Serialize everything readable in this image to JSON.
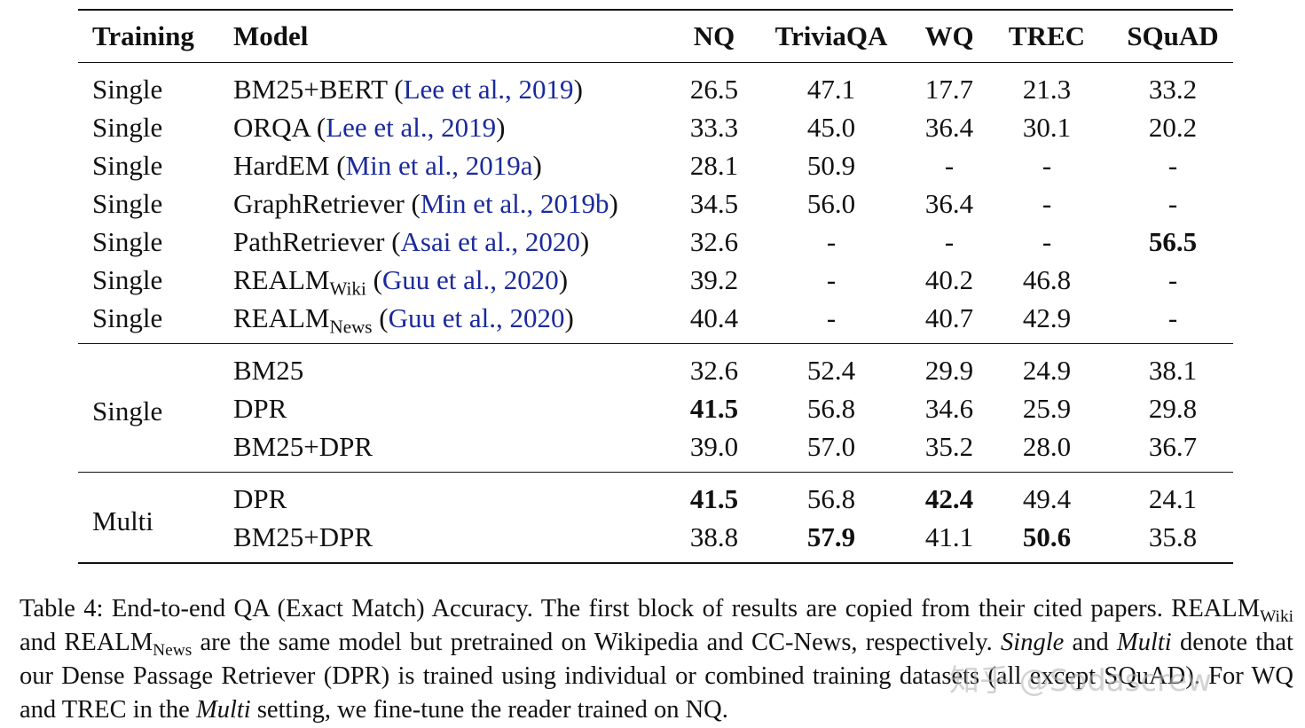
{
  "table": {
    "columns": [
      "Training",
      "Model",
      "NQ",
      "TriviaQA",
      "WQ",
      "TREC",
      "SQuAD"
    ],
    "blocks": [
      {
        "rows": [
          {
            "training": "Single",
            "model": [
              {
                "text": "BM25+BERT ("
              },
              {
                "text": "Lee et al., 2019",
                "cite": true
              },
              {
                "text": ")"
              }
            ],
            "scores": [
              "26.5",
              "47.1",
              "17.7",
              "21.3",
              "33.2"
            ],
            "bold": []
          },
          {
            "training": "Single",
            "model": [
              {
                "text": "ORQA ("
              },
              {
                "text": "Lee et al., 2019",
                "cite": true
              },
              {
                "text": ")"
              }
            ],
            "scores": [
              "33.3",
              "45.0",
              "36.4",
              "30.1",
              "20.2"
            ],
            "bold": []
          },
          {
            "training": "Single",
            "model": [
              {
                "text": "HardEM ("
              },
              {
                "text": "Min et al., 2019a",
                "cite": true
              },
              {
                "text": ")"
              }
            ],
            "scores": [
              "28.1",
              "50.9",
              "-",
              "-",
              "-"
            ],
            "bold": []
          },
          {
            "training": "Single",
            "model": [
              {
                "text": "GraphRetriever ("
              },
              {
                "text": "Min et al., 2019b",
                "cite": true
              },
              {
                "text": ")"
              }
            ],
            "scores": [
              "34.5",
              "56.0",
              "36.4",
              "-",
              "-"
            ],
            "bold": []
          },
          {
            "training": "Single",
            "model": [
              {
                "text": "PathRetriever ("
              },
              {
                "text": "Asai et al., 2020",
                "cite": true
              },
              {
                "text": ")"
              }
            ],
            "scores": [
              "32.6",
              "-",
              "-",
              "-",
              "56.5"
            ],
            "bold": [
              4
            ]
          },
          {
            "training": "Single",
            "model": [
              {
                "text": "REALM"
              },
              {
                "text": "Wiki",
                "sub": true
              },
              {
                "text": " ("
              },
              {
                "text": "Guu et al., 2020",
                "cite": true
              },
              {
                "text": ")"
              }
            ],
            "scores": [
              "39.2",
              "-",
              "40.2",
              "46.8",
              "-"
            ],
            "bold": []
          },
          {
            "training": "Single",
            "model": [
              {
                "text": "REALM"
              },
              {
                "text": "News",
                "sub": true
              },
              {
                "text": " ("
              },
              {
                "text": "Guu et al., 2020",
                "cite": true
              },
              {
                "text": ")"
              }
            ],
            "scores": [
              "40.4",
              "-",
              "40.7",
              "42.9",
              "-"
            ],
            "bold": []
          }
        ]
      },
      {
        "training": "Single",
        "rows": [
          {
            "model": [
              {
                "text": "BM25"
              }
            ],
            "scores": [
              "32.6",
              "52.4",
              "29.9",
              "24.9",
              "38.1"
            ],
            "bold": []
          },
          {
            "model": [
              {
                "text": "DPR"
              }
            ],
            "scores": [
              "41.5",
              "56.8",
              "34.6",
              "25.9",
              "29.8"
            ],
            "bold": [
              0
            ]
          },
          {
            "model": [
              {
                "text": "BM25+DPR"
              }
            ],
            "scores": [
              "39.0",
              "57.0",
              "35.2",
              "28.0",
              "36.7"
            ],
            "bold": []
          }
        ]
      },
      {
        "training": "Multi",
        "rows": [
          {
            "model": [
              {
                "text": "DPR"
              }
            ],
            "scores": [
              "41.5",
              "56.8",
              "42.4",
              "49.4",
              "24.1"
            ],
            "bold": [
              0,
              2
            ]
          },
          {
            "model": [
              {
                "text": "BM25+DPR"
              }
            ],
            "scores": [
              "38.8",
              "57.9",
              "41.1",
              "50.6",
              "35.8"
            ],
            "bold": [
              1,
              3
            ]
          }
        ]
      }
    ]
  },
  "caption": [
    {
      "text": "Table 4: End-to-end QA (Exact Match) Accuracy.  The first block of results are copied from their cited papers. REALM"
    },
    {
      "text": "Wiki",
      "sub": true
    },
    {
      "text": " and REALM"
    },
    {
      "text": "News",
      "sub": true
    },
    {
      "text": " are the same model but pretrained on Wikipedia and CC-News, respectively. "
    },
    {
      "text": "Single",
      "italic": true
    },
    {
      "text": " and "
    },
    {
      "text": "Multi",
      "italic": true
    },
    {
      "text": " denote that our Dense Passage Retriever (DPR) is trained using individual or combined training datasets (all except SQuAD). For WQ and TREC in the "
    },
    {
      "text": "Multi",
      "italic": true
    },
    {
      "text": " setting, we fine-tune the reader trained on NQ."
    }
  ],
  "watermark": "知乎 @Sodascrew"
}
